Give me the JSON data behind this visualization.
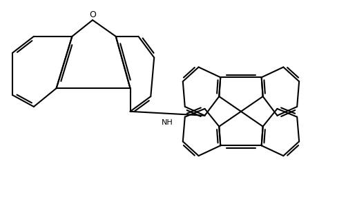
{
  "bg_color": "#ffffff",
  "line_color": "#000000",
  "figsize": [
    4.88,
    2.86
  ],
  "dpi": 100,
  "lw": 1.5,
  "NH_label": "NH",
  "O_label": "O"
}
